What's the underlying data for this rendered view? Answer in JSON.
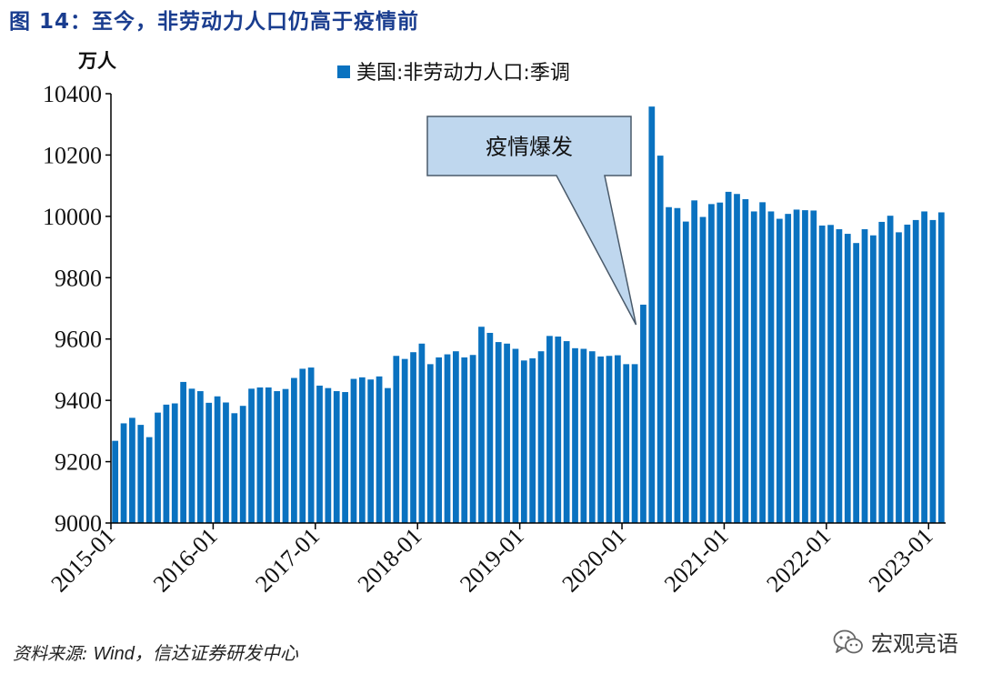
{
  "figure_title": "图 14：至今，非劳动力人口仍高于疫情前",
  "source_label": "资料来源:",
  "source_names": "Wind，信达证券研发中心",
  "watermark": "宏观亮语",
  "chart_data": {
    "type": "bar",
    "ylabel": "万人",
    "ylim": [
      9000,
      10400
    ],
    "yticks": [
      9000,
      9200,
      9400,
      9600,
      9800,
      10000,
      10200,
      10400
    ],
    "xticks": [
      "2015-01",
      "2016-01",
      "2017-01",
      "2018-01",
      "2019-01",
      "2020-01",
      "2021-01",
      "2022-01",
      "2023-01"
    ],
    "start": "2015-01",
    "annotation": "疫情爆发",
    "series": [
      {
        "name": "美国:非劳动力人口:季调",
        "color": "#0a72c0",
        "values": [
          9268,
          9325,
          9343,
          9320,
          9280,
          9360,
          9386,
          9390,
          9460,
          9438,
          9430,
          9392,
          9413,
          9393,
          9358,
          9382,
          9438,
          9442,
          9442,
          9430,
          9437,
          9473,
          9503,
          9507,
          9448,
          9440,
          9430,
          9427,
          9470,
          9475,
          9468,
          9478,
          9440,
          9545,
          9535,
          9557,
          9585,
          9518,
          9540,
          9550,
          9560,
          9540,
          9548,
          9640,
          9620,
          9590,
          9585,
          9568,
          9530,
          9537,
          9560,
          9610,
          9608,
          9593,
          9570,
          9568,
          9560,
          9543,
          9545,
          9547,
          9518,
          9518,
          9712,
          10358,
          10198,
          10030,
          10027,
          9983,
          10052,
          9998,
          10040,
          10045,
          10080,
          10073,
          10056,
          10016,
          10046,
          10016,
          9992,
          10008,
          10022,
          10020,
          10019,
          9970,
          9972,
          9958,
          9943,
          9913,
          9958,
          9938,
          9982,
          10002,
          9948,
          9973,
          9988,
          10016,
          9988,
          10013
        ]
      }
    ]
  }
}
